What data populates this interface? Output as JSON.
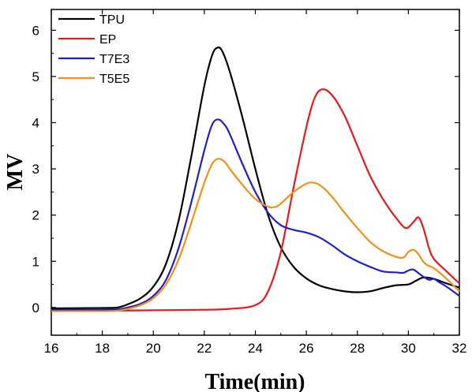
{
  "chart_data": {
    "type": "line",
    "xlabel": "Time(min)",
    "ylabel": "MV",
    "xlim": [
      16,
      32
    ],
    "ylim": [
      -0.6,
      6.45
    ],
    "xticks": [
      16,
      18,
      20,
      22,
      24,
      26,
      28,
      30,
      32
    ],
    "yticks": [
      0,
      1,
      2,
      3,
      4,
      5,
      6
    ],
    "grid": false,
    "legend_position": "top-left",
    "series": [
      {
        "name": "TPU",
        "color": "#000000",
        "x": [
          16,
          18,
          18.6,
          19,
          19.5,
          20,
          20.5,
          21,
          21.5,
          22,
          22.3,
          22.5,
          22.7,
          23,
          23.5,
          24,
          24.5,
          25,
          25.5,
          26,
          26.5,
          27,
          27.5,
          28,
          28.5,
          29,
          29.5,
          30,
          30.3,
          30.6,
          31,
          31.5,
          32
        ],
        "y": [
          -0.02,
          -0.01,
          0.0,
          0.07,
          0.2,
          0.45,
          0.95,
          1.9,
          3.3,
          4.8,
          5.45,
          5.62,
          5.55,
          5.1,
          4.1,
          3.0,
          2.0,
          1.3,
          0.88,
          0.63,
          0.48,
          0.4,
          0.35,
          0.33,
          0.35,
          0.42,
          0.48,
          0.5,
          0.58,
          0.65,
          0.62,
          0.52,
          0.43
        ]
      },
      {
        "name": "EP",
        "color": "#e41a1c",
        "x": [
          16,
          18,
          20,
          22,
          23,
          24,
          24.5,
          25,
          25.5,
          26,
          26.3,
          26.6,
          27,
          27.5,
          28,
          28.5,
          29,
          29.5,
          29.9,
          30.2,
          30.4,
          30.6,
          30.8,
          31,
          31.5,
          32
        ],
        "y": [
          -0.07,
          -0.07,
          -0.06,
          -0.05,
          -0.03,
          0.05,
          0.35,
          1.2,
          2.6,
          3.9,
          4.5,
          4.72,
          4.6,
          4.15,
          3.5,
          2.85,
          2.35,
          1.95,
          1.72,
          1.85,
          1.95,
          1.7,
          1.3,
          1.05,
          0.78,
          0.52
        ]
      },
      {
        "name": "T7E3",
        "color": "#1f1fcc",
        "x": [
          16,
          18,
          18.6,
          19,
          19.5,
          20,
          20.5,
          21,
          21.5,
          22,
          22.3,
          22.55,
          22.8,
          23,
          23.5,
          24,
          24.5,
          25,
          25.5,
          26,
          26.5,
          27,
          27.5,
          28,
          28.5,
          29,
          29.5,
          29.8,
          30,
          30.2,
          30.5,
          30.8,
          31,
          31.2,
          31.5,
          32
        ],
        "y": [
          -0.05,
          -0.05,
          -0.04,
          0.0,
          0.08,
          0.25,
          0.6,
          1.3,
          2.3,
          3.4,
          3.95,
          4.07,
          3.95,
          3.75,
          3.1,
          2.5,
          2.05,
          1.78,
          1.68,
          1.62,
          1.52,
          1.35,
          1.15,
          1.0,
          0.88,
          0.78,
          0.76,
          0.75,
          0.8,
          0.82,
          0.7,
          0.6,
          0.62,
          0.55,
          0.45,
          0.25
        ]
      },
      {
        "name": "T5E5",
        "color": "#f39019",
        "x": [
          16,
          18,
          18.6,
          19,
          19.5,
          20,
          20.5,
          21,
          21.5,
          22,
          22.3,
          22.55,
          22.8,
          23,
          23.5,
          24,
          24.5,
          24.8,
          25,
          25.5,
          26,
          26.3,
          26.6,
          27,
          27.5,
          28,
          28.5,
          29,
          29.5,
          29.8,
          30,
          30.2,
          30.4,
          30.6,
          30.8,
          31,
          31.5,
          32
        ],
        "y": [
          -0.08,
          -0.08,
          -0.07,
          -0.03,
          0.05,
          0.2,
          0.5,
          1.05,
          1.85,
          2.7,
          3.1,
          3.22,
          3.15,
          3.0,
          2.65,
          2.35,
          2.18,
          2.18,
          2.25,
          2.5,
          2.68,
          2.7,
          2.62,
          2.4,
          2.05,
          1.72,
          1.42,
          1.22,
          1.1,
          1.08,
          1.2,
          1.25,
          1.15,
          0.98,
          0.9,
          0.85,
          0.62,
          0.35
        ]
      }
    ]
  }
}
